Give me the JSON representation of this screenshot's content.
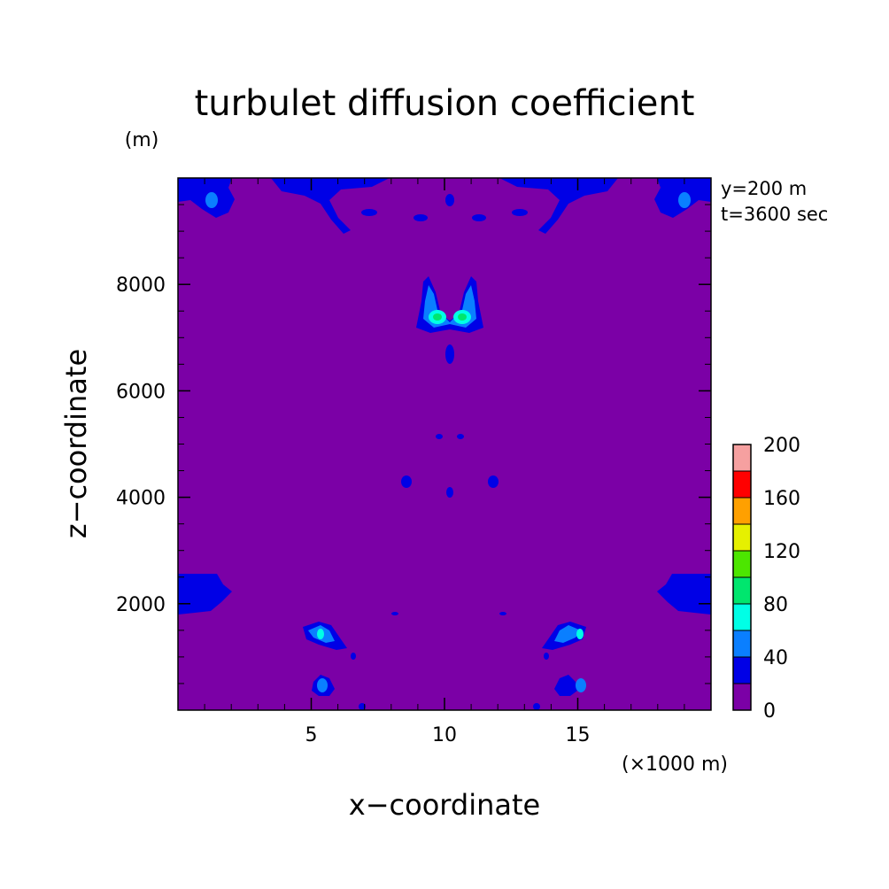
{
  "chart_data": {
    "type": "heatmap",
    "title": "turbulet diffusion coefficient",
    "xlabel": "x−coordinate",
    "ylabel": "z−coordinate",
    "x_unit": "(×1000 m)",
    "y_unit": "(m)",
    "xlim": [
      0,
      20
    ],
    "ylim": [
      0,
      10000
    ],
    "x_ticks": [
      5,
      10,
      15
    ],
    "y_ticks": [
      2000,
      4000,
      6000,
      8000
    ],
    "x_tick_labels": [
      "5",
      "10",
      "15"
    ],
    "y_tick_labels": [
      "2000",
      "4000",
      "6000",
      "8000"
    ],
    "annotations": [
      "y=200 m",
      "t=3600 sec"
    ],
    "colorbar": {
      "levels": [
        0,
        20,
        40,
        60,
        80,
        100,
        120,
        140,
        160,
        180,
        200
      ],
      "tick_labels": [
        "0",
        "40",
        "80",
        "120",
        "160",
        "200"
      ],
      "tick_values": [
        0,
        40,
        80,
        120,
        160,
        200
      ],
      "colors": [
        "#7b00a6",
        "#0000e6",
        "#0a7fff",
        "#00ffe6",
        "#00e66e",
        "#4ce600",
        "#e6f000",
        "#ffa000",
        "#ff0000",
        "#f6a0a0"
      ]
    },
    "background_value_range": [
      0,
      20
    ],
    "regions": [
      {
        "name": "upper-centre-maximum",
        "x": [
          9.6,
          10.7
        ],
        "z": [
          7150,
          7500
        ],
        "max_level": 100
      },
      {
        "name": "left-low-blob",
        "x": [
          5.0,
          6.0
        ],
        "z": [
          1200,
          1900
        ],
        "max_level": 80
      },
      {
        "name": "right-low-blob",
        "x": [
          14.0,
          15.0
        ],
        "z": [
          1200,
          1900
        ],
        "max_level": 80
      },
      {
        "name": "left-bottom-blob",
        "x": [
          5.1,
          5.6
        ],
        "z": [
          250,
          650
        ],
        "max_level": 60
      },
      {
        "name": "right-bottom-blob",
        "x": [
          14.4,
          14.9
        ],
        "z": [
          250,
          650
        ],
        "max_level": 60
      },
      {
        "name": "left-wall-blob",
        "x": [
          0,
          1.8
        ],
        "z": [
          1800,
          2600
        ],
        "max_level": 40
      },
      {
        "name": "right-wall-blob",
        "x": [
          18.2,
          20
        ],
        "z": [
          1800,
          2600
        ],
        "max_level": 40
      },
      {
        "name": "top-left-corner-blob",
        "x": [
          0.5,
          1.8
        ],
        "z": [
          9400,
          9950
        ],
        "max_level": 60
      },
      {
        "name": "top-right-corner-blob",
        "x": [
          18.2,
          19.5
        ],
        "z": [
          9400,
          9950
        ],
        "max_level": 60
      }
    ]
  }
}
